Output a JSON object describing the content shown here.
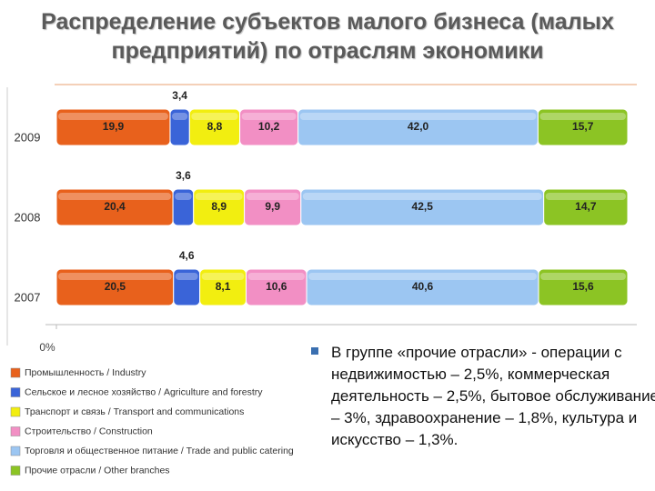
{
  "chart_data": {
    "type": "stacked_bar",
    "title": "Распределение субъектов малого бизнеса (малых предприятий) по отраслям экономики",
    "categories": [
      "2009",
      "2008",
      "2007"
    ],
    "xlim": [
      0,
      100
    ],
    "xticks": [
      {
        "value": 0,
        "label": "0%"
      }
    ],
    "series": [
      {
        "name": "Промышленность / Industry",
        "color": "#e8611c",
        "values": [
          19.9,
          20.4,
          20.5
        ],
        "value_labels": [
          "19,9",
          "20,4",
          "20,5"
        ]
      },
      {
        "name": "Сельское и лесное хозяйство / Agriculture and forestry",
        "color": "#3a64d8",
        "values": [
          3.4,
          3.6,
          4.6
        ],
        "value_labels": [
          "3,4",
          "3,6",
          "4,6"
        ],
        "label_position": "above"
      },
      {
        "name": "Транспорт и связь / Transport and communications",
        "color": "#f2ee10",
        "values": [
          8.8,
          8.9,
          8.1
        ],
        "value_labels": [
          "8,8",
          "8,9",
          "8,1"
        ]
      },
      {
        "name": "Строительство / Construction",
        "color": "#f28fc4",
        "values": [
          10.2,
          9.9,
          10.6
        ],
        "value_labels": [
          "10,2",
          "9,9",
          "10,6"
        ]
      },
      {
        "name": "Торговля и общественное питание / Trade and public catering",
        "color": "#9cc6f2",
        "values": [
          42.0,
          42.5,
          40.6
        ],
        "value_labels": [
          "42,0",
          "42,5",
          "40,6"
        ]
      },
      {
        "name": "Прочие отрасли / Other branches",
        "color": "#8cc424",
        "values": [
          15.7,
          14.7,
          15.6
        ],
        "value_labels": [
          "15,7",
          "14,7",
          "15,6"
        ]
      }
    ],
    "annotation": "В группе «прочие отрасли» - операции с недвижимостью – 2,5%, коммерческая деятельность – 2,5%, бытовое обслуживание – 3%, здравоохранение – 1,8%, культура и искусство – 1,3%."
  }
}
